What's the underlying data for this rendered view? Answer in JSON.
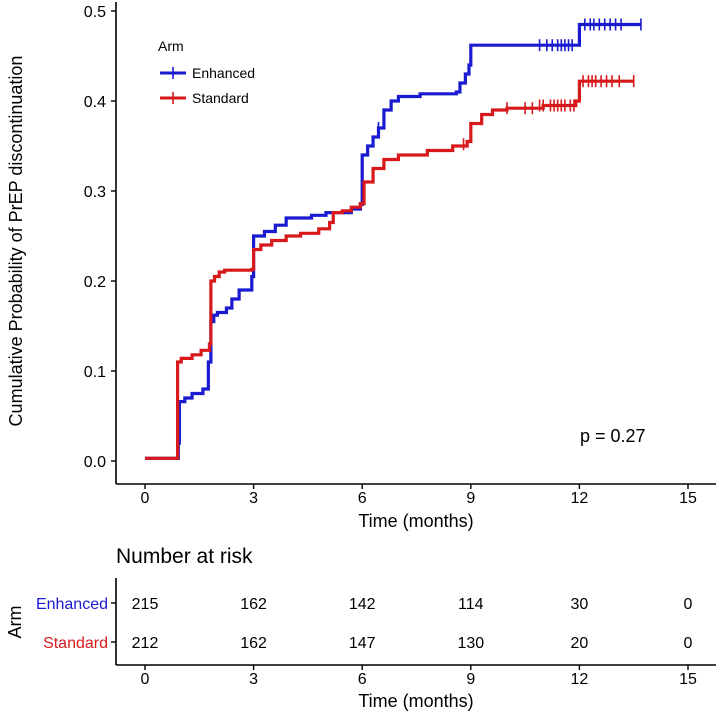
{
  "chart_data": {
    "type": "line",
    "subtype": "kaplan-meier-cumulative-incidence",
    "ylabel": "Cumulative Probability of PrEP discontinuation",
    "xlabel": "Time (months)",
    "xlim": [
      0,
      15
    ],
    "ylim": [
      0,
      0.5
    ],
    "x_ticks": [
      0,
      3,
      6,
      9,
      12,
      15
    ],
    "y_ticks": [
      0.0,
      0.1,
      0.2,
      0.3,
      0.4,
      0.5
    ],
    "y_tick_labels": [
      "0.0",
      "0.1",
      "0.2",
      "0.3",
      "0.4",
      "0.5"
    ],
    "x_tick_labels": [
      "0",
      "3",
      "6",
      "9",
      "12",
      "15"
    ],
    "legend": {
      "title": "Arm",
      "position": "top-left",
      "entries": [
        {
          "name": "Enhanced",
          "color": "#1a1ad0"
        },
        {
          "name": "Standard",
          "color": "#d7191c"
        }
      ]
    },
    "annotation": "p = 0.27",
    "series": [
      {
        "name": "Enhanced",
        "color": "#1a1ad0",
        "steps": [
          [
            0,
            0.003
          ],
          [
            0.9,
            0.003
          ],
          [
            0.92,
            0.02
          ],
          [
            0.95,
            0.066
          ],
          [
            1.1,
            0.07
          ],
          [
            1.3,
            0.075
          ],
          [
            1.6,
            0.08
          ],
          [
            1.75,
            0.11
          ],
          [
            1.82,
            0.155
          ],
          [
            1.9,
            0.162
          ],
          [
            2.0,
            0.165
          ],
          [
            2.25,
            0.17
          ],
          [
            2.4,
            0.18
          ],
          [
            2.6,
            0.19
          ],
          [
            2.95,
            0.205
          ],
          [
            3.0,
            0.25
          ],
          [
            3.3,
            0.255
          ],
          [
            3.6,
            0.262
          ],
          [
            3.9,
            0.27
          ],
          [
            4.6,
            0.273
          ],
          [
            5.0,
            0.276
          ],
          [
            5.3,
            0.276
          ],
          [
            5.7,
            0.28
          ],
          [
            5.95,
            0.285
          ],
          [
            6.0,
            0.34
          ],
          [
            6.15,
            0.35
          ],
          [
            6.3,
            0.36
          ],
          [
            6.45,
            0.37
          ],
          [
            6.6,
            0.39
          ],
          [
            6.8,
            0.4
          ],
          [
            7.0,
            0.405
          ],
          [
            7.6,
            0.408
          ],
          [
            8.6,
            0.41
          ],
          [
            8.7,
            0.42
          ],
          [
            8.85,
            0.43
          ],
          [
            8.95,
            0.44
          ],
          [
            9.0,
            0.462
          ],
          [
            11.9,
            0.462
          ],
          [
            12.0,
            0.485
          ],
          [
            13.7,
            0.485
          ]
        ],
        "censors": [
          [
            6.45,
            0.37
          ],
          [
            10.9,
            0.462
          ],
          [
            11.1,
            0.462
          ],
          [
            11.25,
            0.462
          ],
          [
            11.4,
            0.462
          ],
          [
            11.5,
            0.462
          ],
          [
            11.6,
            0.462
          ],
          [
            11.7,
            0.462
          ],
          [
            11.8,
            0.462
          ],
          [
            12.15,
            0.485
          ],
          [
            12.3,
            0.485
          ],
          [
            12.4,
            0.485
          ],
          [
            12.55,
            0.485
          ],
          [
            12.7,
            0.485
          ],
          [
            12.85,
            0.485
          ],
          [
            13.0,
            0.485
          ],
          [
            13.15,
            0.485
          ],
          [
            13.7,
            0.485
          ]
        ]
      },
      {
        "name": "Standard",
        "color": "#d7191c",
        "steps": [
          [
            0,
            0.003
          ],
          [
            0.88,
            0.003
          ],
          [
            0.9,
            0.11
          ],
          [
            1.0,
            0.114
          ],
          [
            1.3,
            0.118
          ],
          [
            1.55,
            0.123
          ],
          [
            1.78,
            0.13
          ],
          [
            1.82,
            0.2
          ],
          [
            1.92,
            0.205
          ],
          [
            2.05,
            0.21
          ],
          [
            2.2,
            0.212
          ],
          [
            2.95,
            0.213
          ],
          [
            3.0,
            0.235
          ],
          [
            3.2,
            0.24
          ],
          [
            3.5,
            0.245
          ],
          [
            3.9,
            0.25
          ],
          [
            4.3,
            0.253
          ],
          [
            4.8,
            0.258
          ],
          [
            5.1,
            0.265
          ],
          [
            5.2,
            0.276
          ],
          [
            5.45,
            0.278
          ],
          [
            5.7,
            0.282
          ],
          [
            5.95,
            0.286
          ],
          [
            6.05,
            0.31
          ],
          [
            6.3,
            0.325
          ],
          [
            6.6,
            0.335
          ],
          [
            7.0,
            0.34
          ],
          [
            7.8,
            0.345
          ],
          [
            8.5,
            0.35
          ],
          [
            8.9,
            0.355
          ],
          [
            9.0,
            0.375
          ],
          [
            9.3,
            0.385
          ],
          [
            9.6,
            0.39
          ],
          [
            10.0,
            0.392
          ],
          [
            11.0,
            0.395
          ],
          [
            11.6,
            0.395
          ],
          [
            11.9,
            0.4
          ],
          [
            12.0,
            0.422
          ],
          [
            13.5,
            0.422
          ]
        ],
        "censors": [
          [
            8.8,
            0.352
          ],
          [
            10.0,
            0.392
          ],
          [
            10.5,
            0.392
          ],
          [
            10.7,
            0.392
          ],
          [
            10.9,
            0.395
          ],
          [
            11.0,
            0.395
          ],
          [
            11.2,
            0.395
          ],
          [
            11.3,
            0.395
          ],
          [
            11.4,
            0.395
          ],
          [
            11.5,
            0.395
          ],
          [
            11.6,
            0.395
          ],
          [
            11.75,
            0.395
          ],
          [
            11.85,
            0.395
          ],
          [
            12.1,
            0.422
          ],
          [
            12.25,
            0.422
          ],
          [
            12.35,
            0.422
          ],
          [
            12.45,
            0.422
          ],
          [
            12.6,
            0.422
          ],
          [
            12.75,
            0.422
          ],
          [
            12.9,
            0.422
          ],
          [
            13.1,
            0.422
          ],
          [
            13.5,
            0.422
          ]
        ]
      }
    ],
    "risk_table": {
      "title": "Number at risk",
      "ylabel": "Arm",
      "xlabel": "Time (months)",
      "x_ticks": [
        0,
        3,
        6,
        9,
        12,
        15
      ],
      "x_tick_labels": [
        "0",
        "3",
        "6",
        "9",
        "12",
        "15"
      ],
      "rows": [
        {
          "name": "Enhanced",
          "color": "#1a1ad0",
          "values": [
            "215",
            "162",
            "142",
            "114",
            "30",
            "0"
          ]
        },
        {
          "name": "Standard",
          "color": "#d7191c",
          "values": [
            "212",
            "162",
            "147",
            "130",
            "20",
            "0"
          ]
        }
      ]
    }
  }
}
